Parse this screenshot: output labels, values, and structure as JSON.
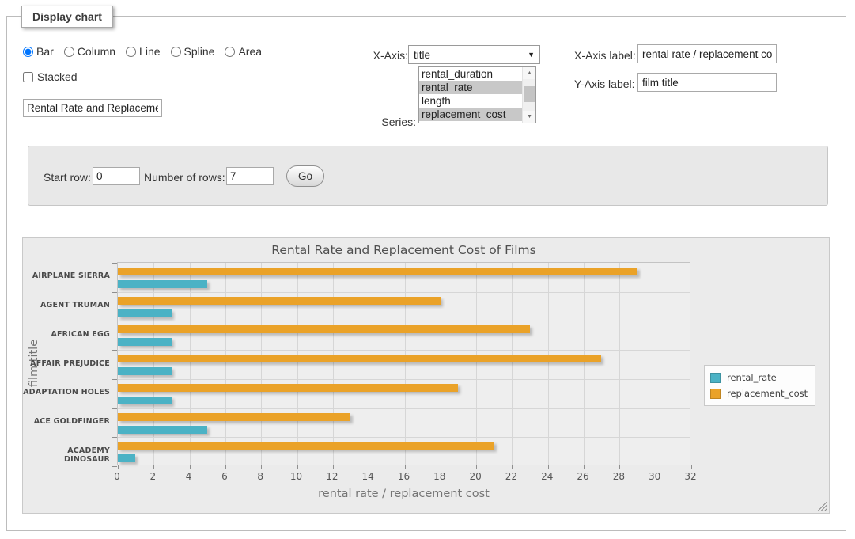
{
  "panel": {
    "legend": "Display chart"
  },
  "chart_type_options": [
    {
      "label": "Bar",
      "selected": true
    },
    {
      "label": "Column",
      "selected": false
    },
    {
      "label": "Line",
      "selected": false
    },
    {
      "label": "Spline",
      "selected": false
    },
    {
      "label": "Area",
      "selected": false
    }
  ],
  "stacked": {
    "label": "Stacked",
    "checked": false
  },
  "title_input": {
    "value": "Rental Rate and Replacement Cost of Films"
  },
  "x_axis": {
    "label": "X-Axis:",
    "selected": "title"
  },
  "series_select": {
    "label": "Series:",
    "options": [
      {
        "label": "rental_duration",
        "selected": false
      },
      {
        "label": "rental_rate",
        "selected": true
      },
      {
        "label": "length",
        "selected": false
      },
      {
        "label": "replacement_cost",
        "selected": true
      }
    ]
  },
  "x_axis_label": {
    "label": "X-Axis label:",
    "value": "rental rate / replacement cost"
  },
  "y_axis_label": {
    "label": "Y-Axis label:",
    "value": "film title"
  },
  "row_controls": {
    "start_row_label": "Start row:",
    "start_row_value": "0",
    "num_rows_label": "Number of rows:",
    "num_rows_value": "7",
    "go_label": "Go"
  },
  "icons": {
    "select_arrow": "▼",
    "scroll_up": "▲",
    "scroll_down": "▼"
  },
  "chart_data": {
    "type": "bar",
    "orientation": "horizontal",
    "title": "Rental Rate and Replacement Cost of Films",
    "categories": [
      "AIRPLANE SIERRA",
      "AGENT TRUMAN",
      "AFRICAN EGG",
      "AFFAIR PREJUDICE",
      "ADAPTATION HOLES",
      "ACE GOLDFINGER",
      "ACADEMY DINOSAUR"
    ],
    "series": [
      {
        "name": "rental_rate",
        "color": "#4bb2c5",
        "values": [
          4.99,
          2.99,
          2.99,
          2.99,
          2.99,
          4.99,
          0.99
        ]
      },
      {
        "name": "replacement_cost",
        "color": "#eaa228",
        "values": [
          28.99,
          17.99,
          22.99,
          26.99,
          18.99,
          12.99,
          20.99
        ]
      }
    ],
    "xlabel": "rental rate / replacement cost",
    "ylabel": "film title",
    "xlim": [
      0,
      32
    ],
    "xticks": [
      0,
      2,
      4,
      6,
      8,
      10,
      12,
      14,
      16,
      18,
      20,
      22,
      24,
      26,
      28,
      30,
      32
    ],
    "grid": true,
    "legend_position": "right-outside"
  }
}
